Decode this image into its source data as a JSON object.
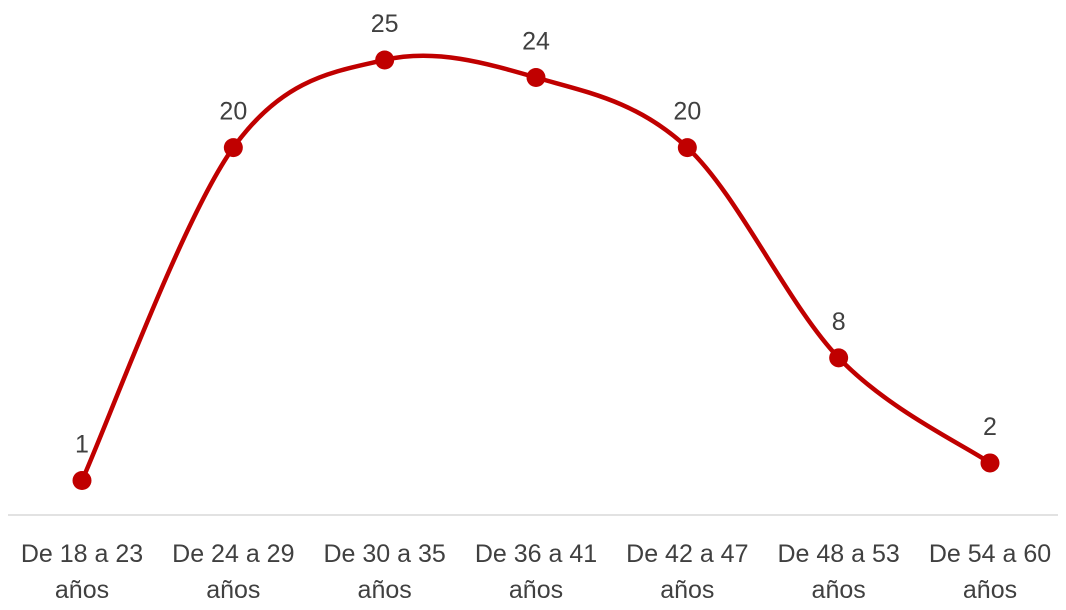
{
  "chart_data": {
    "type": "line",
    "smooth": true,
    "categories": [
      "De 18 a 23 años",
      "De 24 a 29 años",
      "De 30 a 35 años",
      "De 36 a 41 años",
      "De 42 a 47 años",
      "De 48 a 53 años",
      "De 54 a 60 años"
    ],
    "category_lines": [
      [
        "De 18 a 23",
        "años"
      ],
      [
        "De 24 a 29",
        "años"
      ],
      [
        "De 30 a 35",
        "años"
      ],
      [
        "De 36 a 41",
        "años"
      ],
      [
        "De 42 a 47",
        "años"
      ],
      [
        "De 48 a 53",
        "años"
      ],
      [
        "De 54 a 60",
        "años"
      ]
    ],
    "series": [
      {
        "values": [
          1,
          20,
          25,
          24,
          20,
          8,
          2
        ],
        "color": "#C00000"
      }
    ],
    "data_labels": [
      "1",
      "20",
      "25",
      "24",
      "20",
      "8",
      "2"
    ],
    "title": "",
    "xlabel": "",
    "ylabel": "",
    "ylim": [
      0,
      25
    ],
    "grid": false,
    "legend": "none",
    "axis_color": "#D9D9D9",
    "label_color": "#404040"
  }
}
